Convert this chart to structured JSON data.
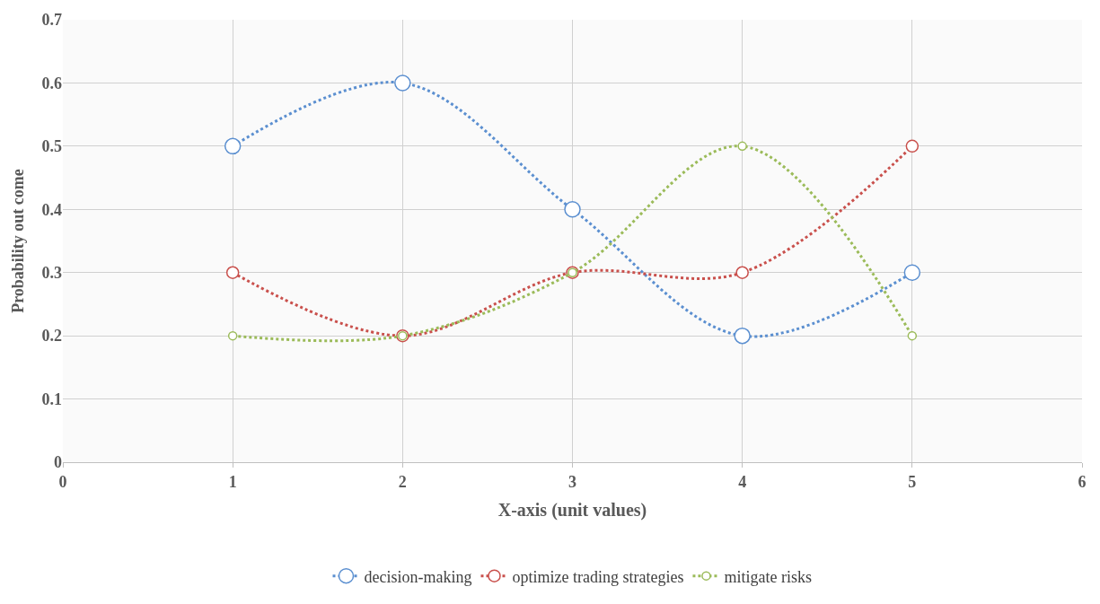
{
  "chart_data": {
    "type": "line",
    "xlabel": "X-axis (unit values)",
    "ylabel": "Probability out come",
    "x": [
      1,
      2,
      3,
      4,
      5
    ],
    "series": [
      {
        "name": "decision-making",
        "color": "#5b8fd0",
        "values": [
          0.5,
          0.6,
          0.4,
          0.2,
          0.3
        ]
      },
      {
        "name": "optimize trading strategies",
        "color": "#c9504c",
        "values": [
          0.3,
          0.2,
          0.3,
          0.3,
          0.5
        ]
      },
      {
        "name": "mitigate risks",
        "color": "#9bbb59",
        "values": [
          0.2,
          0.2,
          0.3,
          0.5,
          0.2
        ]
      }
    ],
    "xlim": [
      0,
      6
    ],
    "xticks": [
      0,
      1,
      2,
      3,
      4,
      5,
      6
    ],
    "ylim": [
      0,
      0.7
    ],
    "yticks": [
      0,
      0.1,
      0.2,
      0.3,
      0.4,
      0.5,
      0.6,
      0.7
    ],
    "grid": true,
    "legend": "bottom",
    "marker": "circle",
    "line_style": "dotted"
  }
}
